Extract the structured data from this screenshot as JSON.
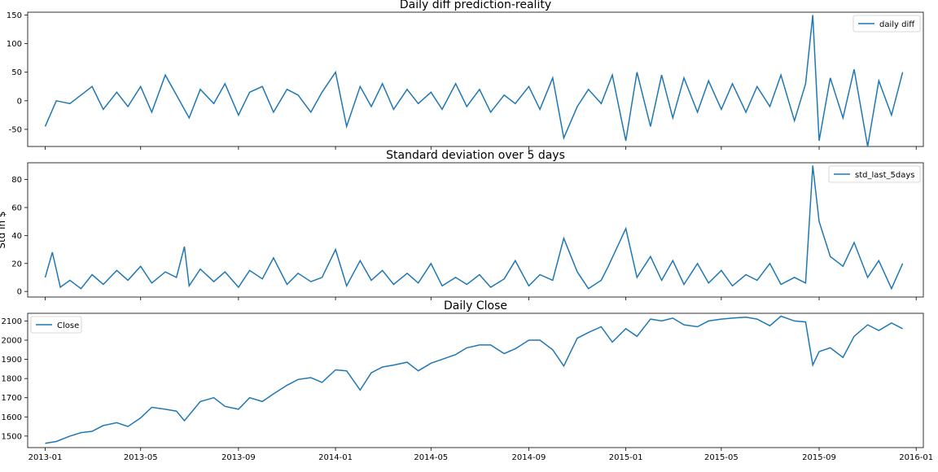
{
  "chart_data": [
    {
      "type": "line",
      "title": "Daily diff prediction-reality",
      "ylabel": "",
      "xlabel": "",
      "legend": "top-right",
      "ylim": [
        -80,
        155
      ],
      "xlim": [
        "2012-12-10",
        "2016-01-10"
      ],
      "yticks": [
        -50,
        0,
        50,
        100,
        150
      ],
      "color": "#1f77b4",
      "series": [
        {
          "name": "daily diff",
          "x": [
            "2013-01-01",
            "2013-01-15",
            "2013-02-01",
            "2013-02-15",
            "2013-03-01",
            "2013-03-15",
            "2013-04-01",
            "2013-04-15",
            "2013-05-01",
            "2013-05-15",
            "2013-06-01",
            "2013-06-15",
            "2013-07-01",
            "2013-07-15",
            "2013-08-01",
            "2013-08-15",
            "2013-09-01",
            "2013-09-15",
            "2013-10-01",
            "2013-10-15",
            "2013-11-01",
            "2013-11-15",
            "2013-12-01",
            "2013-12-15",
            "2014-01-01",
            "2014-01-15",
            "2014-02-01",
            "2014-02-15",
            "2014-03-01",
            "2014-03-15",
            "2014-04-01",
            "2014-04-15",
            "2014-05-01",
            "2014-05-15",
            "2014-06-01",
            "2014-06-15",
            "2014-07-01",
            "2014-07-15",
            "2014-08-01",
            "2014-08-15",
            "2014-09-01",
            "2014-09-15",
            "2014-10-01",
            "2014-10-15",
            "2014-11-01",
            "2014-11-15",
            "2014-12-01",
            "2014-12-15",
            "2015-01-01",
            "2015-01-15",
            "2015-02-01",
            "2015-02-15",
            "2015-03-01",
            "2015-03-15",
            "2015-04-01",
            "2015-04-15",
            "2015-05-01",
            "2015-05-15",
            "2015-06-01",
            "2015-06-15",
            "2015-07-01",
            "2015-07-15",
            "2015-08-01",
            "2015-08-15",
            "2015-08-24",
            "2015-09-01",
            "2015-09-15",
            "2015-10-01",
            "2015-10-15",
            "2015-11-01",
            "2015-11-15",
            "2015-12-01",
            "2015-12-15"
          ],
          "values": [
            -45,
            0,
            -5,
            10,
            25,
            -15,
            15,
            -10,
            25,
            -20,
            45,
            10,
            -30,
            20,
            -5,
            30,
            -25,
            15,
            25,
            -20,
            20,
            10,
            -20,
            15,
            50,
            -45,
            25,
            -10,
            30,
            -15,
            20,
            -5,
            15,
            -15,
            30,
            -10,
            20,
            -20,
            10,
            -5,
            25,
            -15,
            40,
            -65,
            -10,
            20,
            -5,
            45,
            -70,
            50,
            -45,
            45,
            -30,
            40,
            -20,
            35,
            -15,
            30,
            -20,
            25,
            -10,
            45,
            -35,
            30,
            150,
            -70,
            40,
            -30,
            55,
            -80,
            35,
            -25,
            50
          ]
        }
      ]
    },
    {
      "type": "line",
      "title": "Standard deviation over 5 days",
      "ylabel": "Std in $",
      "xlabel": "",
      "legend": "top-right",
      "ylim": [
        -4,
        92
      ],
      "xlim": [
        "2012-12-10",
        "2016-01-10"
      ],
      "yticks": [
        0,
        20,
        40,
        60,
        80
      ],
      "color": "#1f77b4",
      "series": [
        {
          "name": "std_last_5days",
          "x": [
            "2013-01-01",
            "2013-01-10",
            "2013-01-20",
            "2013-02-01",
            "2013-02-15",
            "2013-03-01",
            "2013-03-15",
            "2013-04-01",
            "2013-04-15",
            "2013-05-01",
            "2013-05-15",
            "2013-06-01",
            "2013-06-15",
            "2013-06-25",
            "2013-07-01",
            "2013-07-15",
            "2013-08-01",
            "2013-08-15",
            "2013-09-01",
            "2013-09-15",
            "2013-10-01",
            "2013-10-15",
            "2013-11-01",
            "2013-11-15",
            "2013-12-01",
            "2013-12-15",
            "2014-01-01",
            "2014-01-15",
            "2014-02-01",
            "2014-02-15",
            "2014-03-01",
            "2014-03-15",
            "2014-04-01",
            "2014-04-15",
            "2014-05-01",
            "2014-05-15",
            "2014-06-01",
            "2014-06-15",
            "2014-07-01",
            "2014-07-15",
            "2014-08-01",
            "2014-08-15",
            "2014-09-01",
            "2014-09-15",
            "2014-10-01",
            "2014-10-15",
            "2014-11-01",
            "2014-11-15",
            "2014-12-01",
            "2014-12-10",
            "2015-01-01",
            "2015-01-15",
            "2015-02-01",
            "2015-02-15",
            "2015-03-01",
            "2015-03-15",
            "2015-04-01",
            "2015-04-15",
            "2015-05-01",
            "2015-05-15",
            "2015-06-01",
            "2015-06-15",
            "2015-07-01",
            "2015-07-15",
            "2015-08-01",
            "2015-08-15",
            "2015-08-24",
            "2015-09-01",
            "2015-09-15",
            "2015-10-01",
            "2015-10-15",
            "2015-11-01",
            "2015-11-15",
            "2015-12-01",
            "2015-12-15"
          ],
          "values": [
            10,
            28,
            3,
            8,
            2,
            12,
            5,
            15,
            8,
            18,
            6,
            14,
            10,
            32,
            4,
            16,
            7,
            14,
            3,
            15,
            9,
            24,
            5,
            13,
            7,
            10,
            30,
            4,
            22,
            8,
            15,
            5,
            13,
            6,
            20,
            4,
            10,
            5,
            12,
            3,
            9,
            22,
            4,
            12,
            8,
            38,
            14,
            2,
            8,
            18,
            45,
            10,
            25,
            8,
            22,
            5,
            20,
            6,
            15,
            4,
            12,
            8,
            20,
            5,
            10,
            6,
            90,
            50,
            25,
            18,
            35,
            10,
            22,
            2,
            20
          ]
        }
      ]
    },
    {
      "type": "line",
      "title": "Daily Close",
      "ylabel": "",
      "xlabel": "",
      "legend": "top-left",
      "ylim": [
        1440,
        2140
      ],
      "xlim": [
        "2012-12-10",
        "2016-01-10"
      ],
      "yticks": [
        1500,
        1600,
        1700,
        1800,
        1900,
        2000,
        2100
      ],
      "xticks": [
        "2013-01",
        "2013-05",
        "2013-09",
        "2014-01",
        "2014-05",
        "2014-09",
        "2015-01",
        "2015-05",
        "2015-09",
        "2016-01"
      ],
      "color": "#1f77b4",
      "series": [
        {
          "name": "Close",
          "x": [
            "2013-01-01",
            "2013-01-15",
            "2013-02-01",
            "2013-02-15",
            "2013-03-01",
            "2013-03-15",
            "2013-04-01",
            "2013-04-15",
            "2013-05-01",
            "2013-05-15",
            "2013-06-01",
            "2013-06-15",
            "2013-06-25",
            "2013-07-15",
            "2013-08-01",
            "2013-08-15",
            "2013-09-01",
            "2013-09-15",
            "2013-10-01",
            "2013-10-15",
            "2013-11-01",
            "2013-11-15",
            "2013-12-01",
            "2013-12-15",
            "2014-01-01",
            "2014-01-15",
            "2014-02-01",
            "2014-02-15",
            "2014-03-01",
            "2014-03-15",
            "2014-04-01",
            "2014-04-15",
            "2014-05-01",
            "2014-05-15",
            "2014-06-01",
            "2014-06-15",
            "2014-07-01",
            "2014-07-15",
            "2014-08-01",
            "2014-08-15",
            "2014-09-01",
            "2014-09-15",
            "2014-10-01",
            "2014-10-15",
            "2014-11-01",
            "2014-11-15",
            "2014-12-01",
            "2014-12-15",
            "2015-01-01",
            "2015-01-15",
            "2015-02-01",
            "2015-02-15",
            "2015-03-01",
            "2015-03-15",
            "2015-04-01",
            "2015-04-15",
            "2015-05-01",
            "2015-05-15",
            "2015-06-01",
            "2015-06-15",
            "2015-07-01",
            "2015-07-15",
            "2015-08-01",
            "2015-08-15",
            "2015-08-24",
            "2015-09-01",
            "2015-09-15",
            "2015-10-01",
            "2015-10-15",
            "2015-11-01",
            "2015-11-15",
            "2015-12-01",
            "2015-12-15"
          ],
          "values": [
            1462,
            1472,
            1500,
            1518,
            1525,
            1555,
            1570,
            1550,
            1595,
            1650,
            1640,
            1630,
            1580,
            1680,
            1700,
            1655,
            1640,
            1700,
            1680,
            1720,
            1765,
            1795,
            1805,
            1780,
            1845,
            1840,
            1740,
            1830,
            1860,
            1870,
            1885,
            1840,
            1880,
            1900,
            1925,
            1960,
            1975,
            1975,
            1930,
            1955,
            2000,
            2000,
            1950,
            1865,
            2010,
            2040,
            2070,
            1990,
            2060,
            2020,
            2110,
            2100,
            2115,
            2080,
            2070,
            2100,
            2110,
            2115,
            2120,
            2110,
            2075,
            2125,
            2100,
            2095,
            1870,
            1940,
            1960,
            1910,
            2020,
            2080,
            2050,
            2090,
            2060
          ]
        }
      ]
    }
  ]
}
